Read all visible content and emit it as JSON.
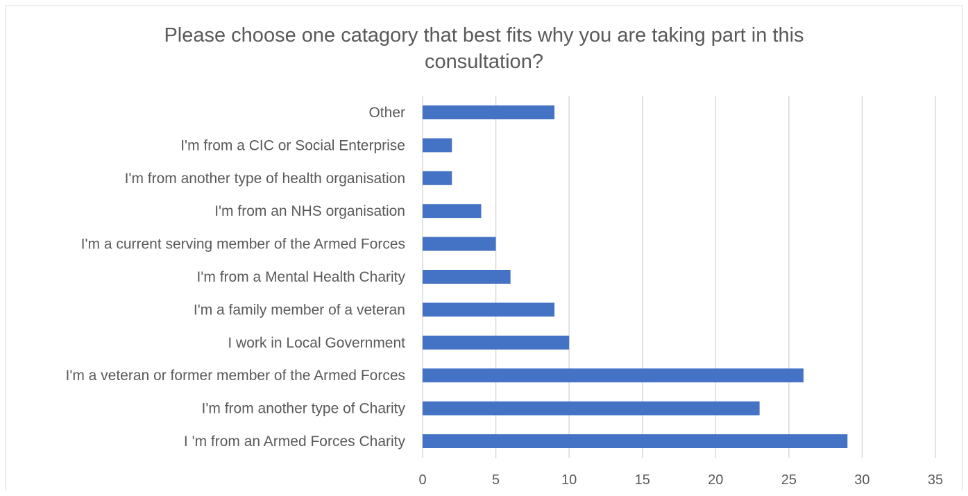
{
  "chart_data": {
    "type": "bar",
    "orientation": "horizontal",
    "title_lines": [
      "Please choose one catagory that best fits why you are taking part in this",
      "consultation?"
    ],
    "categories": [
      "I 'm from an Armed Forces Charity",
      "I'm from another type of Charity",
      "I'm a veteran or former member of the Armed Forces",
      "I work in Local Government",
      "I'm a family member of a veteran ",
      "I'm from a Mental Health Charity",
      "I'm a current serving member of the Armed Forces",
      "I'm from an NHS organisation",
      "I'm from another type of health organisation",
      "I'm from a CIC or Social Enterprise",
      "Other"
    ],
    "values": [
      29,
      23,
      26,
      10,
      9,
      6,
      5,
      4,
      2,
      2,
      9
    ],
    "xlim": [
      0,
      35
    ],
    "xticks": [
      "0",
      "5",
      "10",
      "15",
      "20",
      "25",
      "30",
      "35"
    ],
    "grid": true,
    "legend": "none",
    "bar_color": "#4472c4",
    "grid_color": "#d9d9d9",
    "text_color": "#595959"
  }
}
